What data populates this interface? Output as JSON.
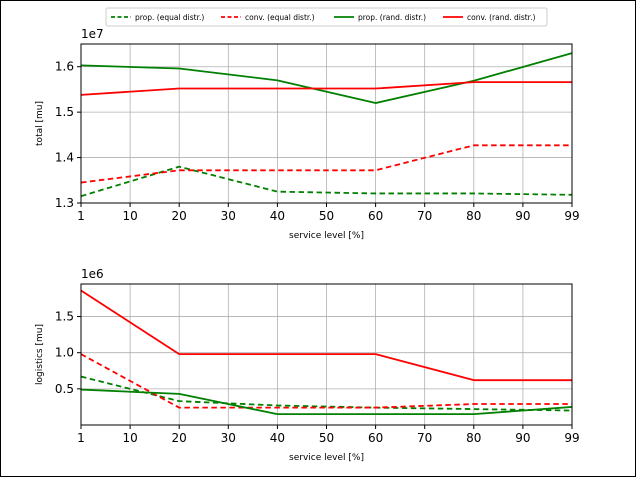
{
  "chart_data": [
    {
      "type": "line",
      "xlabel": "service level [%]",
      "ylabel": "total [mu]",
      "offset_label": "1e7",
      "x_ticks": [
        "1",
        "10",
        "20",
        "30",
        "40",
        "50",
        "60",
        "70",
        "80",
        "90",
        "99"
      ],
      "y_ticks": [
        "1.3",
        "1.4",
        "1.5",
        "1.6"
      ],
      "ylim": [
        1.3,
        1.65
      ],
      "grid": true,
      "series": [
        {
          "name": "prop. (equal distr.)",
          "color": "#008000",
          "style": "dashed",
          "x": [
            1,
            20,
            40,
            60,
            80,
            99
          ],
          "y": [
            1.315,
            1.38,
            1.325,
            1.321,
            1.321,
            1.318
          ]
        },
        {
          "name": "conv. (equal distr.)",
          "color": "#ff0000",
          "style": "dashed",
          "x": [
            1,
            20,
            40,
            60,
            80,
            99
          ],
          "y": [
            1.345,
            1.372,
            1.372,
            1.372,
            1.427,
            1.427
          ]
        },
        {
          "name": "prop. (rand. distr.)",
          "color": "#008000",
          "style": "solid",
          "x": [
            1,
            20,
            40,
            60,
            80,
            99
          ],
          "y": [
            1.603,
            1.596,
            1.57,
            1.52,
            1.569,
            1.63
          ]
        },
        {
          "name": "conv. (rand. distr.)",
          "color": "#ff0000",
          "style": "solid",
          "x": [
            1,
            20,
            40,
            60,
            80,
            99
          ],
          "y": [
            1.538,
            1.552,
            1.552,
            1.552,
            1.566,
            1.566
          ]
        }
      ]
    },
    {
      "type": "line",
      "xlabel": "service level [%]",
      "ylabel": "logistics [mu]",
      "offset_label": "1e6",
      "x_ticks": [
        "1",
        "10",
        "20",
        "30",
        "40",
        "50",
        "60",
        "70",
        "80",
        "90",
        "99"
      ],
      "y_ticks": [
        "0.5",
        "1.0",
        "1.5"
      ],
      "ylim": [
        0.0,
        1.95
      ],
      "grid": true,
      "series": [
        {
          "name": "prop. (equal distr.)",
          "color": "#008000",
          "style": "dashed",
          "x": [
            1,
            20,
            40,
            60,
            80,
            99
          ],
          "y": [
            0.67,
            0.33,
            0.27,
            0.24,
            0.22,
            0.2
          ]
        },
        {
          "name": "conv. (equal distr.)",
          "color": "#ff0000",
          "style": "dashed",
          "x": [
            1,
            20,
            40,
            60,
            80,
            99
          ],
          "y": [
            0.98,
            0.24,
            0.24,
            0.24,
            0.29,
            0.29
          ]
        },
        {
          "name": "prop. (rand. distr.)",
          "color": "#008000",
          "style": "solid",
          "x": [
            1,
            20,
            40,
            60,
            80,
            99
          ],
          "y": [
            0.49,
            0.43,
            0.15,
            0.15,
            0.15,
            0.25
          ]
        },
        {
          "name": "conv. (rand. distr.)",
          "color": "#ff0000",
          "style": "solid",
          "x": [
            1,
            20,
            40,
            60,
            80,
            99
          ],
          "y": [
            1.86,
            0.98,
            0.98,
            0.98,
            0.62,
            0.62
          ]
        }
      ]
    }
  ],
  "legend": {
    "placement": "top-center",
    "entries": [
      {
        "label": "prop. (equal distr.)",
        "color": "#008000",
        "style": "dashed"
      },
      {
        "label": "conv. (equal distr.)",
        "color": "#ff0000",
        "style": "dashed"
      },
      {
        "label": "prop. (rand. distr.)",
        "color": "#008000",
        "style": "solid"
      },
      {
        "label": "conv. (rand. distr.)",
        "color": "#ff0000",
        "style": "solid"
      }
    ]
  },
  "colors": {
    "grid": "#b0b0b0",
    "axes": "#000000",
    "frame": "#000000"
  }
}
